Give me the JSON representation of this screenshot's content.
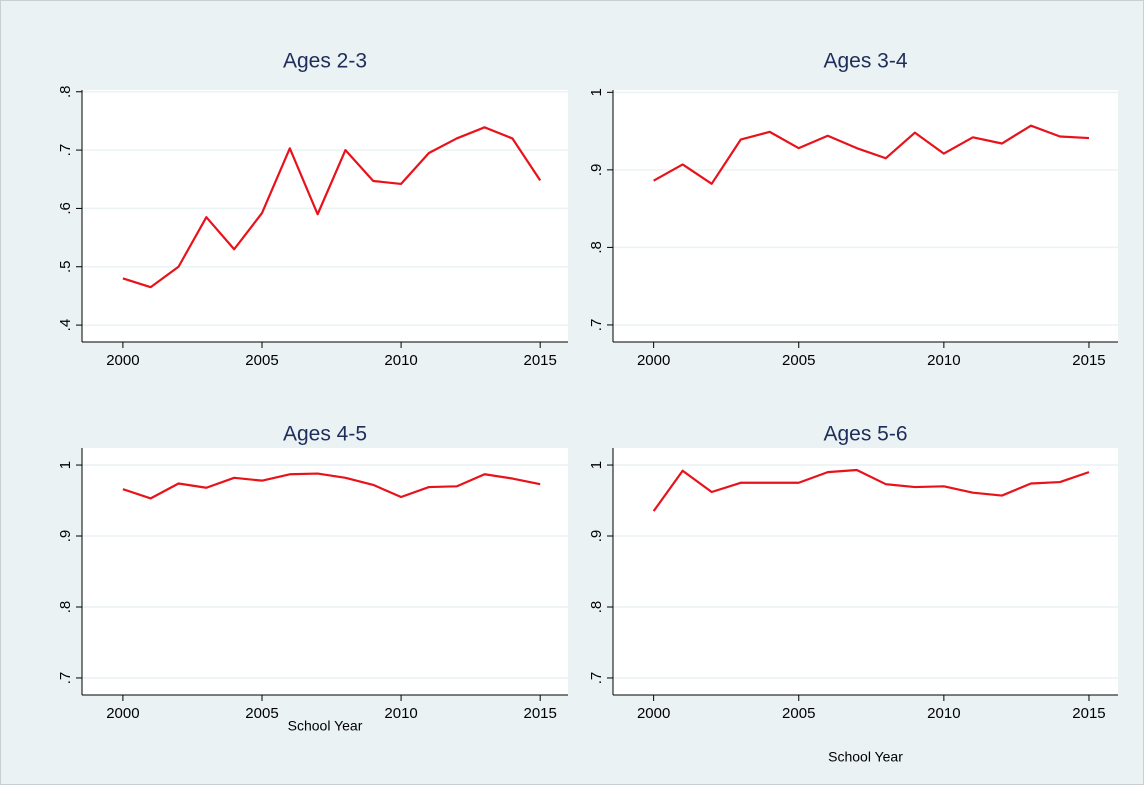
{
  "chart_data": [
    {
      "type": "line",
      "title": "Ages 2-3",
      "x": [
        2000,
        2001,
        2002,
        2003,
        2004,
        2005,
        2006,
        2007,
        2008,
        2009,
        2010,
        2011,
        2012,
        2013,
        2014,
        2015
      ],
      "values": [
        0.48,
        0.465,
        0.5,
        0.585,
        0.53,
        0.592,
        0.703,
        0.59,
        0.7,
        0.647,
        0.642,
        0.695,
        0.72,
        0.739,
        0.72,
        0.648
      ],
      "color": "#e8121a",
      "grid": true,
      "xlim": [
        1998.53,
        2016.0
      ],
      "xticks": [
        2000,
        2005,
        2010,
        2015
      ],
      "ylim": [
        0.371,
        0.803
      ],
      "yticks": [
        {
          "value": 0.4,
          "label": ".4"
        },
        {
          "value": 0.5,
          "label": ".5"
        },
        {
          "value": 0.6,
          "label": ".6"
        },
        {
          "value": 0.7,
          "label": ".7"
        },
        {
          "value": 0.8,
          "label": ".8"
        }
      ]
    },
    {
      "type": "line",
      "title": "Ages 3-4",
      "x": [
        2000,
        2001,
        2002,
        2003,
        2004,
        2005,
        2006,
        2007,
        2008,
        2009,
        2010,
        2011,
        2012,
        2013,
        2014,
        2015
      ],
      "values": [
        0.886,
        0.907,
        0.882,
        0.939,
        0.949,
        0.928,
        0.944,
        0.928,
        0.915,
        0.948,
        0.921,
        0.942,
        0.934,
        0.957,
        0.943,
        0.941
      ],
      "color": "#e8121a",
      "grid": true,
      "xlim": [
        1998.6,
        2016.0
      ],
      "xticks": [
        2000,
        2005,
        2010,
        2015
      ],
      "ylim": [
        0.678,
        1.003
      ],
      "yticks": [
        {
          "value": 0.7,
          "label": ".7"
        },
        {
          "value": 0.8,
          "label": ".8"
        },
        {
          "value": 0.9,
          "label": ".9"
        },
        1
      ]
    },
    {
      "type": "line",
      "title": "Ages 4-5",
      "xlabel": "School Year",
      "x": [
        2000,
        2001,
        2002,
        2003,
        2004,
        2005,
        2006,
        2007,
        2008,
        2009,
        2010,
        2011,
        2012,
        2013,
        2014,
        2015
      ],
      "values": [
        0.966,
        0.953,
        0.974,
        0.968,
        0.982,
        0.978,
        0.987,
        0.988,
        0.982,
        0.972,
        0.955,
        0.969,
        0.97,
        0.987,
        0.981,
        0.973
      ],
      "color": "#e8121a",
      "grid": true,
      "xlim": [
        1998.53,
        2016.0
      ],
      "xticks": [
        2000,
        2005,
        2010,
        2015
      ],
      "ylim": [
        0.676,
        1.024
      ],
      "yticks": [
        {
          "value": 0.7,
          "label": ".7"
        },
        {
          "value": 0.8,
          "label": ".8"
        },
        {
          "value": 0.9,
          "label": ".9"
        },
        1
      ]
    },
    {
      "type": "line",
      "title": "Ages 5-6",
      "xlabel": "School Year",
      "x": [
        2000,
        2001,
        2002,
        2003,
        2004,
        2005,
        2006,
        2007,
        2008,
        2009,
        2010,
        2011,
        2012,
        2013,
        2014,
        2015
      ],
      "values": [
        0.935,
        0.992,
        0.962,
        0.975,
        0.975,
        0.975,
        0.99,
        0.993,
        0.973,
        0.969,
        0.97,
        0.961,
        0.957,
        0.974,
        0.976,
        0.99
      ],
      "color": "#e8121a",
      "grid": true,
      "xlim": [
        1998.6,
        2016.0
      ],
      "xticks": [
        2000,
        2005,
        2010,
        2015
      ],
      "ylim": [
        0.676,
        1.024
      ],
      "yticks": [
        {
          "value": 0.7,
          "label": ".7"
        },
        {
          "value": 0.8,
          "label": ".8"
        },
        {
          "value": 0.9,
          "label": ".9"
        },
        1
      ]
    }
  ]
}
